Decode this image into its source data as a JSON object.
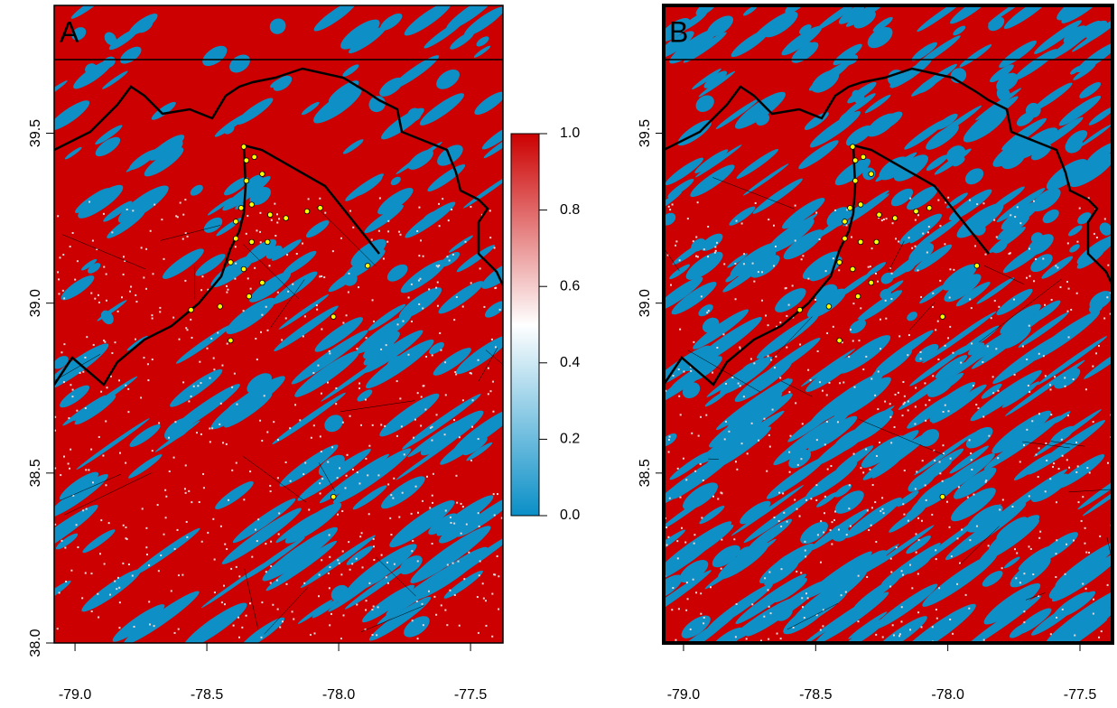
{
  "chart_data": [
    {
      "type": "map",
      "label": "A",
      "xlim": [
        -79.079,
        -77.377
      ],
      "ylim": [
        38.0,
        39.876
      ],
      "xticks": [
        {
          "value": -79,
          "label": "-79.0"
        },
        {
          "value": -78.5,
          "label": "-78.5"
        },
        {
          "value": -78,
          "label": "-78.0"
        },
        {
          "value": -77.5,
          "label": "-77.5"
        }
      ],
      "yticks": [
        {
          "value": 38,
          "label": "38.0"
        },
        {
          "value": 38.5,
          "label": "38.5"
        },
        {
          "value": 39,
          "label": "39.0"
        },
        {
          "value": 39.5,
          "label": "39.5"
        }
      ],
      "points": {
        "color": "#ffff00",
        "lon": [
          -78.36,
          -78.35,
          -78.32,
          -78.35,
          -78.29,
          -78.37,
          -78.33,
          -78.26,
          -78.2,
          -78.12,
          -78.07,
          -78.39,
          -78.33,
          -78.27,
          -78.41,
          -78.36,
          -78.29,
          -78.45,
          -78.56,
          -78.41,
          -77.89,
          -78.02,
          -78.02,
          -78.39,
          -78.34
        ],
        "lat": [
          39.46,
          39.42,
          39.43,
          39.36,
          39.38,
          39.28,
          39.29,
          39.26,
          39.25,
          39.27,
          39.28,
          39.19,
          39.18,
          39.18,
          39.12,
          39.1,
          39.06,
          38.99,
          38.98,
          38.89,
          39.11,
          38.96,
          38.43,
          39.24,
          39.02
        ]
      },
      "colorbar": {
        "lim": [
          0,
          1
        ],
        "colors": [
          "#0a8fc7",
          "#ffffff",
          "#cc0000"
        ],
        "ticks": [
          {
            "value": 0,
            "label": "0.0"
          },
          {
            "value": 0.2,
            "label": "0.2"
          },
          {
            "value": 0.4,
            "label": "0.4"
          },
          {
            "value": 0.6,
            "label": "0.6"
          },
          {
            "value": 0.8,
            "label": "0.8"
          },
          {
            "value": 1,
            "label": "1.0"
          }
        ]
      }
    },
    {
      "type": "map",
      "label": "B",
      "xlim": [
        -79.075,
        -77.377
      ],
      "ylim": [
        38.0,
        39.876
      ],
      "xticks": [
        {
          "value": -79,
          "label": "-79.0"
        },
        {
          "value": -78.5,
          "label": "-78.5"
        },
        {
          "value": -78,
          "label": "-78.0"
        },
        {
          "value": -77.5,
          "label": "-77.5"
        }
      ],
      "yticks": [
        {
          "value": 38.5,
          "label": "38.5"
        },
        {
          "value": 39,
          "label": "39.0"
        },
        {
          "value": 39.5,
          "label": "39.5"
        }
      ],
      "points": {
        "color": "#ffff00",
        "lon": [
          -78.36,
          -78.35,
          -78.32,
          -78.35,
          -78.29,
          -78.37,
          -78.33,
          -78.26,
          -78.2,
          -78.12,
          -78.07,
          -78.39,
          -78.33,
          -78.27,
          -78.41,
          -78.36,
          -78.29,
          -78.45,
          -78.56,
          -78.41,
          -77.89,
          -78.02,
          -78.02,
          -78.39,
          -78.34
        ],
        "lat": [
          39.46,
          39.42,
          39.43,
          39.36,
          39.38,
          39.28,
          39.29,
          39.26,
          39.25,
          39.27,
          39.28,
          39.19,
          39.18,
          39.18,
          39.12,
          39.1,
          39.06,
          38.99,
          38.98,
          38.89,
          39.11,
          38.96,
          38.43,
          39.24,
          39.02
        ]
      }
    }
  ]
}
